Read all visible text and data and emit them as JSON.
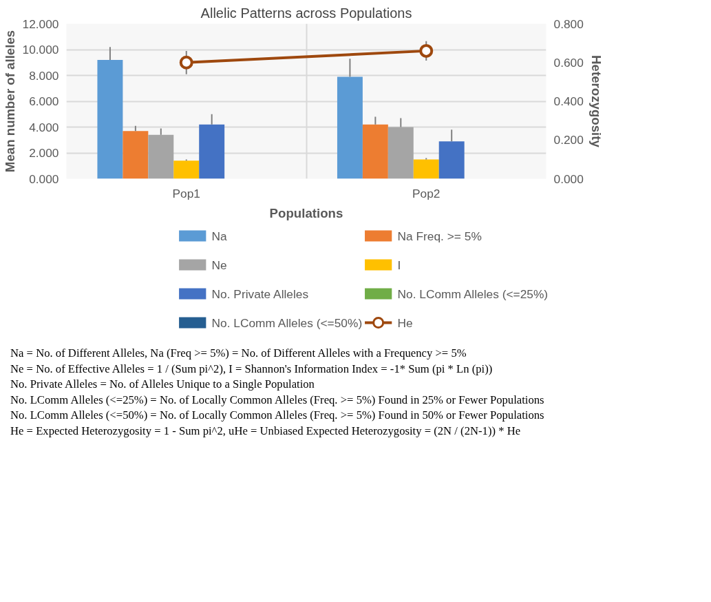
{
  "chart_data": {
    "type": "bar",
    "title": "Allelic Patterns across Populations",
    "xlabel": "Populations",
    "ylabel": "Mean number of alleles",
    "y2label": "Heterozygosity",
    "categories": [
      "Pop1",
      "Pop2"
    ],
    "series": [
      {
        "name": "Na",
        "color": "#5b9bd5",
        "values": [
          9.2,
          7.9
        ],
        "errors": [
          [
            9.2,
            10.2
          ],
          [
            7.9,
            9.3
          ]
        ]
      },
      {
        "name": "Na Freq. >= 5%",
        "color": "#ed7d31",
        "values": [
          3.7,
          4.2
        ],
        "errors": [
          [
            3.7,
            4.1
          ],
          [
            4.2,
            4.8
          ]
        ]
      },
      {
        "name": "Ne",
        "color": "#a5a5a5",
        "values": [
          3.4,
          4.0
        ],
        "errors": [
          [
            3.4,
            3.9
          ],
          [
            4.0,
            4.7
          ]
        ]
      },
      {
        "name": "I",
        "color": "#ffc000",
        "values": [
          1.4,
          1.5
        ],
        "errors": [
          [
            1.4,
            1.5
          ],
          [
            1.5,
            1.6
          ]
        ]
      },
      {
        "name": "No. Private Alleles",
        "color": "#4472c4",
        "values": [
          4.2,
          2.9
        ],
        "errors": [
          [
            4.2,
            5.0
          ],
          [
            2.9,
            3.8
          ]
        ]
      },
      {
        "name": "No. LComm Alleles (<=25%)",
        "color": "#70ad47",
        "values": [
          0,
          0
        ]
      },
      {
        "name": "No. LComm Alleles (<=50%)",
        "color": "#255e91",
        "values": [
          0,
          0
        ]
      },
      {
        "name": "He",
        "type": "line",
        "axis": "y2",
        "color": "#9e480e",
        "marker": "circle",
        "values": [
          0.6,
          0.66
        ],
        "errors": [
          [
            0.54,
            0.66
          ],
          [
            0.61,
            0.71
          ]
        ]
      }
    ],
    "ylim": [
      0,
      12
    ],
    "yticks": [
      {
        "value": 0,
        "label": "0.000"
      },
      {
        "value": 2,
        "label": "2.000"
      },
      {
        "value": 4,
        "label": "4.000"
      },
      {
        "value": 6,
        "label": "6.000"
      },
      {
        "value": 8,
        "label": "8.000"
      },
      {
        "value": 10,
        "label": "10.000"
      },
      {
        "value": 12,
        "label": "12.000"
      }
    ],
    "y2lim": [
      0,
      0.8
    ],
    "y2ticks": [
      {
        "value": 0,
        "label": "0.000"
      },
      {
        "value": 0.2,
        "label": "0.200"
      },
      {
        "value": 0.4,
        "label": "0.400"
      },
      {
        "value": 0.6,
        "label": "0.600"
      },
      {
        "value": 0.8,
        "label": "0.800"
      }
    ],
    "grid": true,
    "legend": "bottom",
    "annotations": [
      "Na = No. of Different Alleles, Na (Freq >= 5%) = No. of Different Alleles with a Frequency >= 5%",
      "Ne = No. of Effective Alleles = 1 / (Sum pi^2), I = Shannon's Information Index = -1* Sum (pi * Ln (pi))",
      "No. Private Alleles = No. of Alleles Unique to a Single Population",
      "No. LComm Alleles (<=25%) = No. of Locally Common Alleles (Freq. >= 5%) Found in 25% or Fewer Populations",
      "No. LComm Alleles (<=50%) = No. of Locally Common Alleles (Freq. >= 5%) Found in 50% or Fewer Populations",
      "He = Expected Heterozygosity = 1 - Sum pi^2, uHe = Unbiased Expected Heterozygosity = (2N / (2N-1)) * He"
    ]
  }
}
